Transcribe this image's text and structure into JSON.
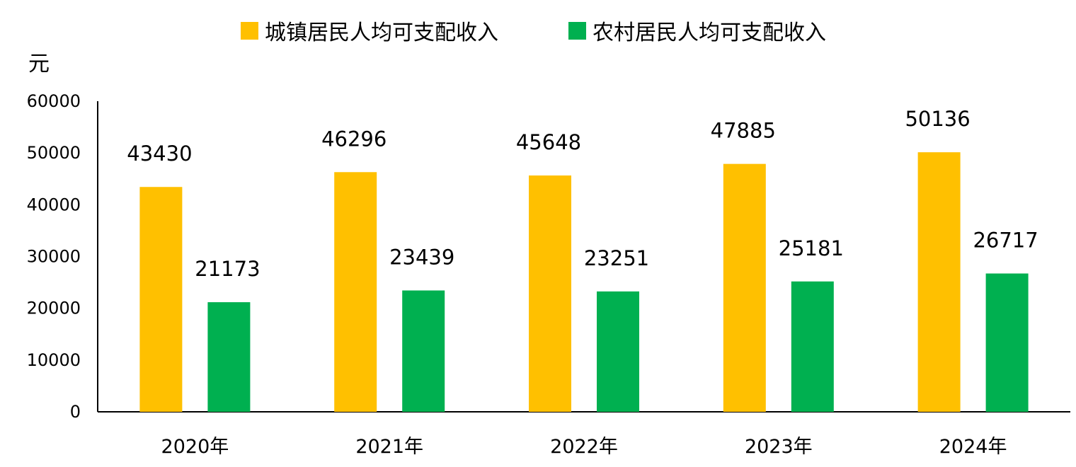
{
  "chart_data": {
    "type": "bar",
    "unit": "元",
    "categories": [
      "2020年",
      "2021年",
      "2022年",
      "2023年",
      "2024年"
    ],
    "series": [
      {
        "name": "城镇居民人均可支配收入",
        "color": "#FFC000",
        "values": [
          43430,
          46296,
          45648,
          47885,
          50136
        ]
      },
      {
        "name": "农村居民人均可支配收入",
        "color": "#00B050",
        "values": [
          21173,
          23439,
          23251,
          25181,
          26717
        ]
      }
    ],
    "yticks": [
      "0",
      "10000",
      "20000",
      "30000",
      "40000",
      "50000",
      "60000"
    ],
    "ylim": [
      0,
      60000
    ],
    "legend_position": "top",
    "grid": false
  }
}
